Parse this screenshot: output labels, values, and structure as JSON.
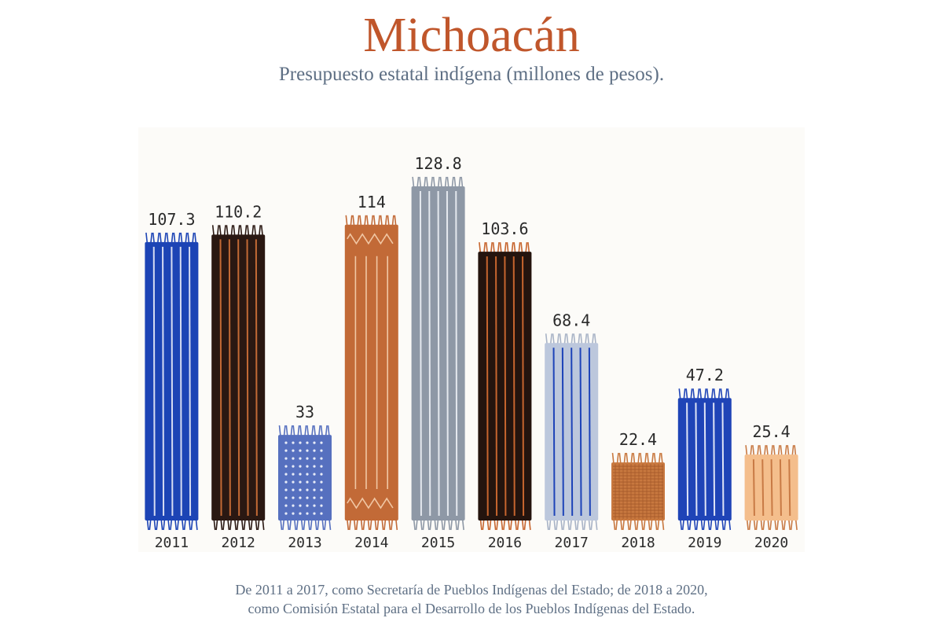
{
  "page": {
    "title": "Michoacán",
    "subtitle": "Presupuesto estatal indígena (millones de pesos).",
    "footnote_line1": "De 2011 a 2017, como Secretaría de Pueblos Indígenas del Estado; de 2018 a 2020,",
    "footnote_line2": "como Comisión Estatal para el Desarrollo de los Pueblos Indígenas del Estado."
  },
  "colors": {
    "title": "#c0562b",
    "subtitle": "#5e6f84",
    "footnote": "#5e6f84",
    "label": "#2a2a2a"
  },
  "chart_data": {
    "type": "bar",
    "title": "Michoacán",
    "subtitle": "Presupuesto estatal indígena (millones de pesos).",
    "xlabel": "",
    "ylabel": "",
    "categories": [
      "2011",
      "2012",
      "2013",
      "2014",
      "2015",
      "2016",
      "2017",
      "2018",
      "2019",
      "2020"
    ],
    "values": [
      107.3,
      110.2,
      33,
      114,
      128.8,
      103.6,
      68.4,
      22.4,
      47.2,
      25.4
    ],
    "value_labels": [
      "107.3",
      "110.2",
      "33",
      "114",
      "128.8",
      "103.6",
      "68.4",
      "22.4",
      "47.2",
      "25.4"
    ],
    "ylim": [
      0,
      140
    ],
    "grid": false,
    "legend": "none",
    "bar_styles": [
      {
        "fill": "#1c44b5",
        "stripe": "#d6dcf2",
        "fringe": "#1c44b5",
        "pattern": "stripes"
      },
      {
        "fill": "#2a1812",
        "stripe": "#c36a35",
        "fringe": "#2a1812",
        "pattern": "stripes"
      },
      {
        "fill": "#5670bf",
        "stripe": "#e8ecf8",
        "fringe": "#5670bf",
        "pattern": "dots"
      },
      {
        "fill": "#c26a37",
        "stripe": "#f1c7a4",
        "fringe": "#c26a37",
        "pattern": "zigzag"
      },
      {
        "fill": "#8e98a6",
        "stripe": "#e4e8ee",
        "fringe": "#8e98a6",
        "pattern": "stripes"
      },
      {
        "fill": "#24140e",
        "stripe": "#c7652e",
        "fringe": "#c7652e",
        "pattern": "stripes"
      },
      {
        "fill": "#bcc7dc",
        "stripe": "#1d43b8",
        "fringe": "#a8b3c6",
        "pattern": "stripes"
      },
      {
        "fill": "#c8783f",
        "stripe": "#a55a2b",
        "fringe": "#c8783f",
        "pattern": "grid"
      },
      {
        "fill": "#1f44b7",
        "stripe": "#dfe4f6",
        "fringe": "#1f44b7",
        "pattern": "stripes"
      },
      {
        "fill": "#f4be8c",
        "stripe": "#c87a45",
        "fringe": "#c87a45",
        "pattern": "stripes"
      }
    ]
  }
}
